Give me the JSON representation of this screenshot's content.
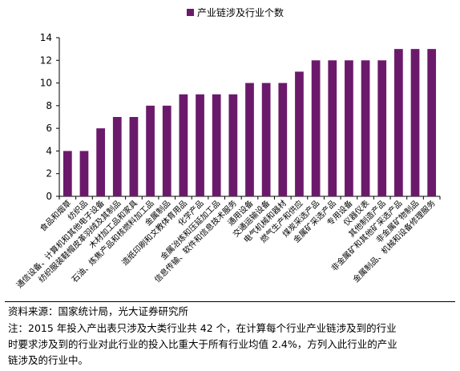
{
  "chart_data": {
    "type": "bar",
    "legend": "产业链涉及行业个数",
    "legend_position": "top-center",
    "color": "#6B1A6B",
    "ylim": [
      0,
      14
    ],
    "yticks": [
      0,
      2,
      4,
      6,
      8,
      10,
      12,
      14
    ],
    "grid": false,
    "categories": [
      "食品和烟草",
      "纺织品",
      "通信设备、计算机和其他电子设备",
      "纺织服装鞋帽皮革羽绒及其制品",
      "木材加工品和家具",
      "石油、炼焦产品和核燃料加工品",
      "金属制品",
      "造纸印刷和文教体育用品",
      "化学产品",
      "金属冶炼和压延加工品",
      "信息传输、软件和信息技术服务",
      "通用设备",
      "交通运输设备",
      "电气机械和器材",
      "燃气生产和供应",
      "煤炭采选产品",
      "金属矿采选产品",
      "专用设备",
      "仪器仪表",
      "其他制造产品",
      "非金属矿和其他矿采选产品",
      "非金属矿物制品",
      "金属制品、机械和设备修理服务"
    ],
    "values": [
      4,
      4,
      6,
      7,
      7,
      8,
      8,
      9,
      9,
      9,
      9,
      10,
      10,
      10,
      11,
      12,
      12,
      12,
      12,
      12,
      13,
      13,
      13
    ]
  },
  "footer": {
    "source": "资料来源：国家统计局，光大证券研究所",
    "note_line1": "注：2015 年投入产出表只涉及大类行业共 42 个，在计算每个行业产业链涉及到的行业",
    "note_line2": "时要求涉及到的行业对此行业的投入比重大于所有行业均值 2.4%，方列入此行业的产业",
    "note_line3": "链涉及的行业中。"
  }
}
